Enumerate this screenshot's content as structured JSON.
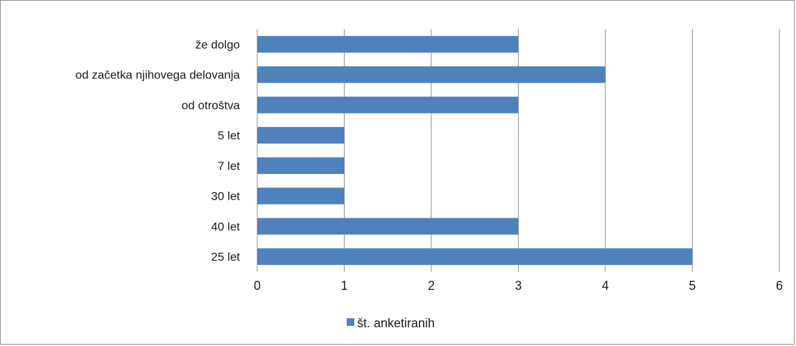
{
  "chart_data": {
    "type": "bar",
    "orientation": "horizontal",
    "categories": [
      "že dolgo",
      "od začetka njihovega delovanja",
      "od otroštva",
      "5 let",
      "7 let",
      "30 let",
      "40 let",
      "25 let"
    ],
    "series": [
      {
        "name": "št. anketiranih",
        "values": [
          3,
          4,
          3,
          1,
          1,
          1,
          3,
          5
        ]
      }
    ],
    "xlim": [
      0,
      6
    ],
    "xticks": [
      "0",
      "1",
      "2",
      "3",
      "4",
      "5",
      "6"
    ],
    "grid": true,
    "legend_position": "bottom",
    "colors": {
      "bar": "#4f81bd",
      "grid": "#8c8c8c",
      "frame": "#8c8c8c"
    }
  }
}
